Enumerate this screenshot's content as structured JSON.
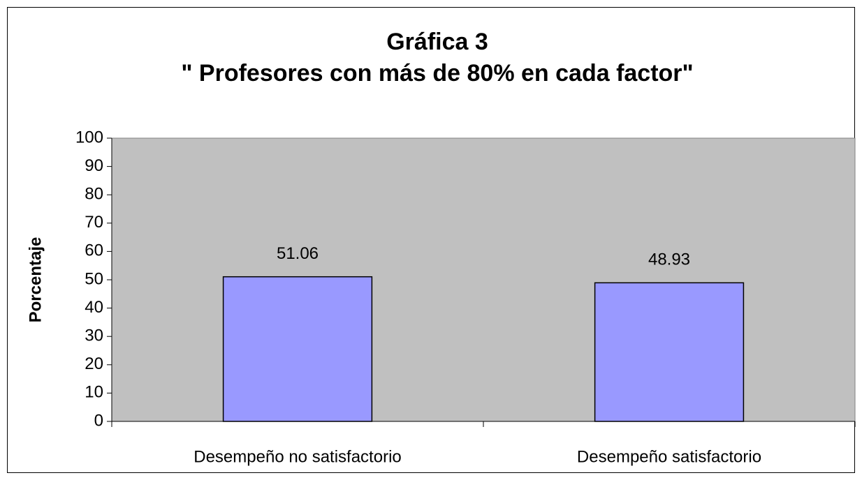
{
  "chart_data": {
    "type": "bar",
    "title": "Gráfica 3",
    "subtitle": "\" Profesores con más de 80% en cada factor\"",
    "y_label": "Porcentaje",
    "categories": [
      "Desempeño no satisfactorio",
      "Desempeño satisfactorio"
    ],
    "values": [
      51.06,
      48.93
    ],
    "color": "#9999ff",
    "plot_background": "#c0c0c0",
    "ylim": [
      0,
      100
    ],
    "yticks": [
      0,
      10,
      20,
      30,
      40,
      50,
      60,
      70,
      80,
      90,
      100
    ],
    "grid": false
  }
}
